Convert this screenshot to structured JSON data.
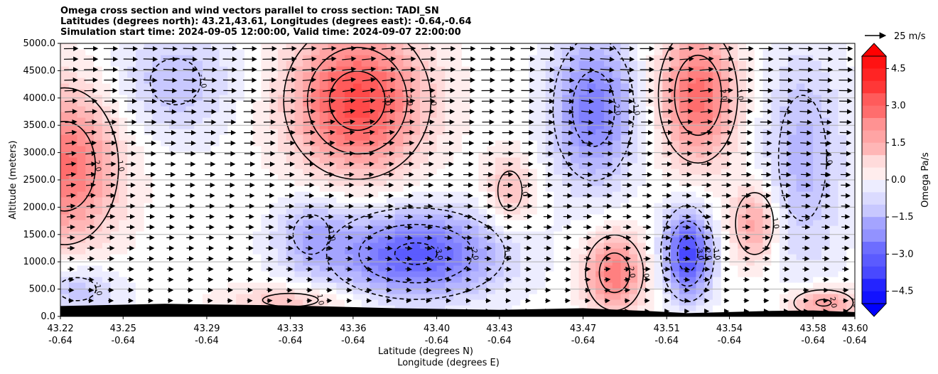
{
  "colors": {
    "positive_max": "#ff0000",
    "negative_max": "#0000ff",
    "neutral": "#ffffff",
    "terrain": "#000000",
    "contour": "#000000",
    "grid": "#b0b0b0"
  },
  "chart_data": {
    "type": "heatmap",
    "title_lines": [
      "Omega cross section and wind vectors parallel to cross section: TADI_SN",
      "Latitudes (degrees north): 43.21,43.61, Longitudes (degrees east): -0.64,-0.64",
      "Simulation start time: 2024-09-05 12:00:00, Valid time: 2024-09-07 22:00:00"
    ],
    "xlabel": "Latitude (degrees N)",
    "xlabel2": "Longitude (degrees E)",
    "ylabel": "Altitude (meters)",
    "x_ticks": [
      {
        "lat": "43.22",
        "lon": "-0.64"
      },
      {
        "lat": "43.25",
        "lon": "-0.64"
      },
      {
        "lat": "43.29",
        "lon": "-0.64"
      },
      {
        "lat": "43.33",
        "lon": "-0.64"
      },
      {
        "lat": "43.36",
        "lon": "-0.64"
      },
      {
        "lat": "43.40",
        "lon": "-0.64"
      },
      {
        "lat": "43.43",
        "lon": "-0.64"
      },
      {
        "lat": "43.47",
        "lon": "-0.64"
      },
      {
        "lat": "43.51",
        "lon": "-0.64"
      },
      {
        "lat": "43.54",
        "lon": "-0.64"
      },
      {
        "lat": "43.58",
        "lon": "-0.64"
      },
      {
        "lat": "43.60",
        "lon": "-0.64"
      }
    ],
    "y_ticks": [
      "0.0",
      "500.0",
      "1000.0",
      "1500.0",
      "2000.0",
      "2500.0",
      "3000.0",
      "3500.0",
      "4000.0",
      "4500.0",
      "5000.0"
    ],
    "ylim": [
      0,
      5000
    ],
    "grid": "horizontal",
    "colorbar": {
      "label": "Omega Pa/s",
      "range": [
        -5,
        5
      ],
      "ticks": [
        "4.5",
        "3.0",
        "1.5",
        "0.0",
        "−1.5",
        "−3.0",
        "−4.5"
      ],
      "extend": "both"
    },
    "quiver_key": "25 m/s",
    "contour_labels": [
      "-1.0",
      "0.0",
      "1.0",
      "2.0",
      "3.0",
      "-2.0",
      "-3.0"
    ],
    "centers": [
      {
        "x": 43.222,
        "y": 2750,
        "omega": 2.8,
        "sx": 0.018,
        "sy": 1000
      },
      {
        "x": 43.362,
        "y": 3950,
        "omega": 3.6,
        "sx": 0.022,
        "sy": 900
      },
      {
        "x": 43.39,
        "y": 1150,
        "omega": -3.2,
        "sx": 0.028,
        "sy": 550
      },
      {
        "x": 43.475,
        "y": 3800,
        "omega": -2.6,
        "sx": 0.014,
        "sy": 950
      },
      {
        "x": 43.525,
        "y": 4050,
        "omega": 2.9,
        "sx": 0.013,
        "sy": 850
      },
      {
        "x": 43.52,
        "y": 1150,
        "omega": -3.6,
        "sx": 0.008,
        "sy": 550
      },
      {
        "x": 43.485,
        "y": 800,
        "omega": 2.6,
        "sx": 0.01,
        "sy": 500
      },
      {
        "x": 43.575,
        "y": 2900,
        "omega": -1.4,
        "sx": 0.014,
        "sy": 1400
      },
      {
        "x": 43.552,
        "y": 1700,
        "omega": 1.9,
        "sx": 0.008,
        "sy": 500
      },
      {
        "x": 43.435,
        "y": 2300,
        "omega": 1.3,
        "sx": 0.008,
        "sy": 500
      },
      {
        "x": 43.275,
        "y": 4300,
        "omega": -1.2,
        "sx": 0.02,
        "sy": 700
      },
      {
        "x": 43.34,
        "y": 1500,
        "omega": -1.3,
        "sx": 0.012,
        "sy": 500
      },
      {
        "x": 43.228,
        "y": 500,
        "omega": -1.2,
        "sx": 0.015,
        "sy": 350
      },
      {
        "x": 43.585,
        "y": 250,
        "omega": 2.0,
        "sx": 0.012,
        "sy": 200
      },
      {
        "x": 43.33,
        "y": 300,
        "omega": 1.2,
        "sx": 0.022,
        "sy": 200
      }
    ]
  }
}
